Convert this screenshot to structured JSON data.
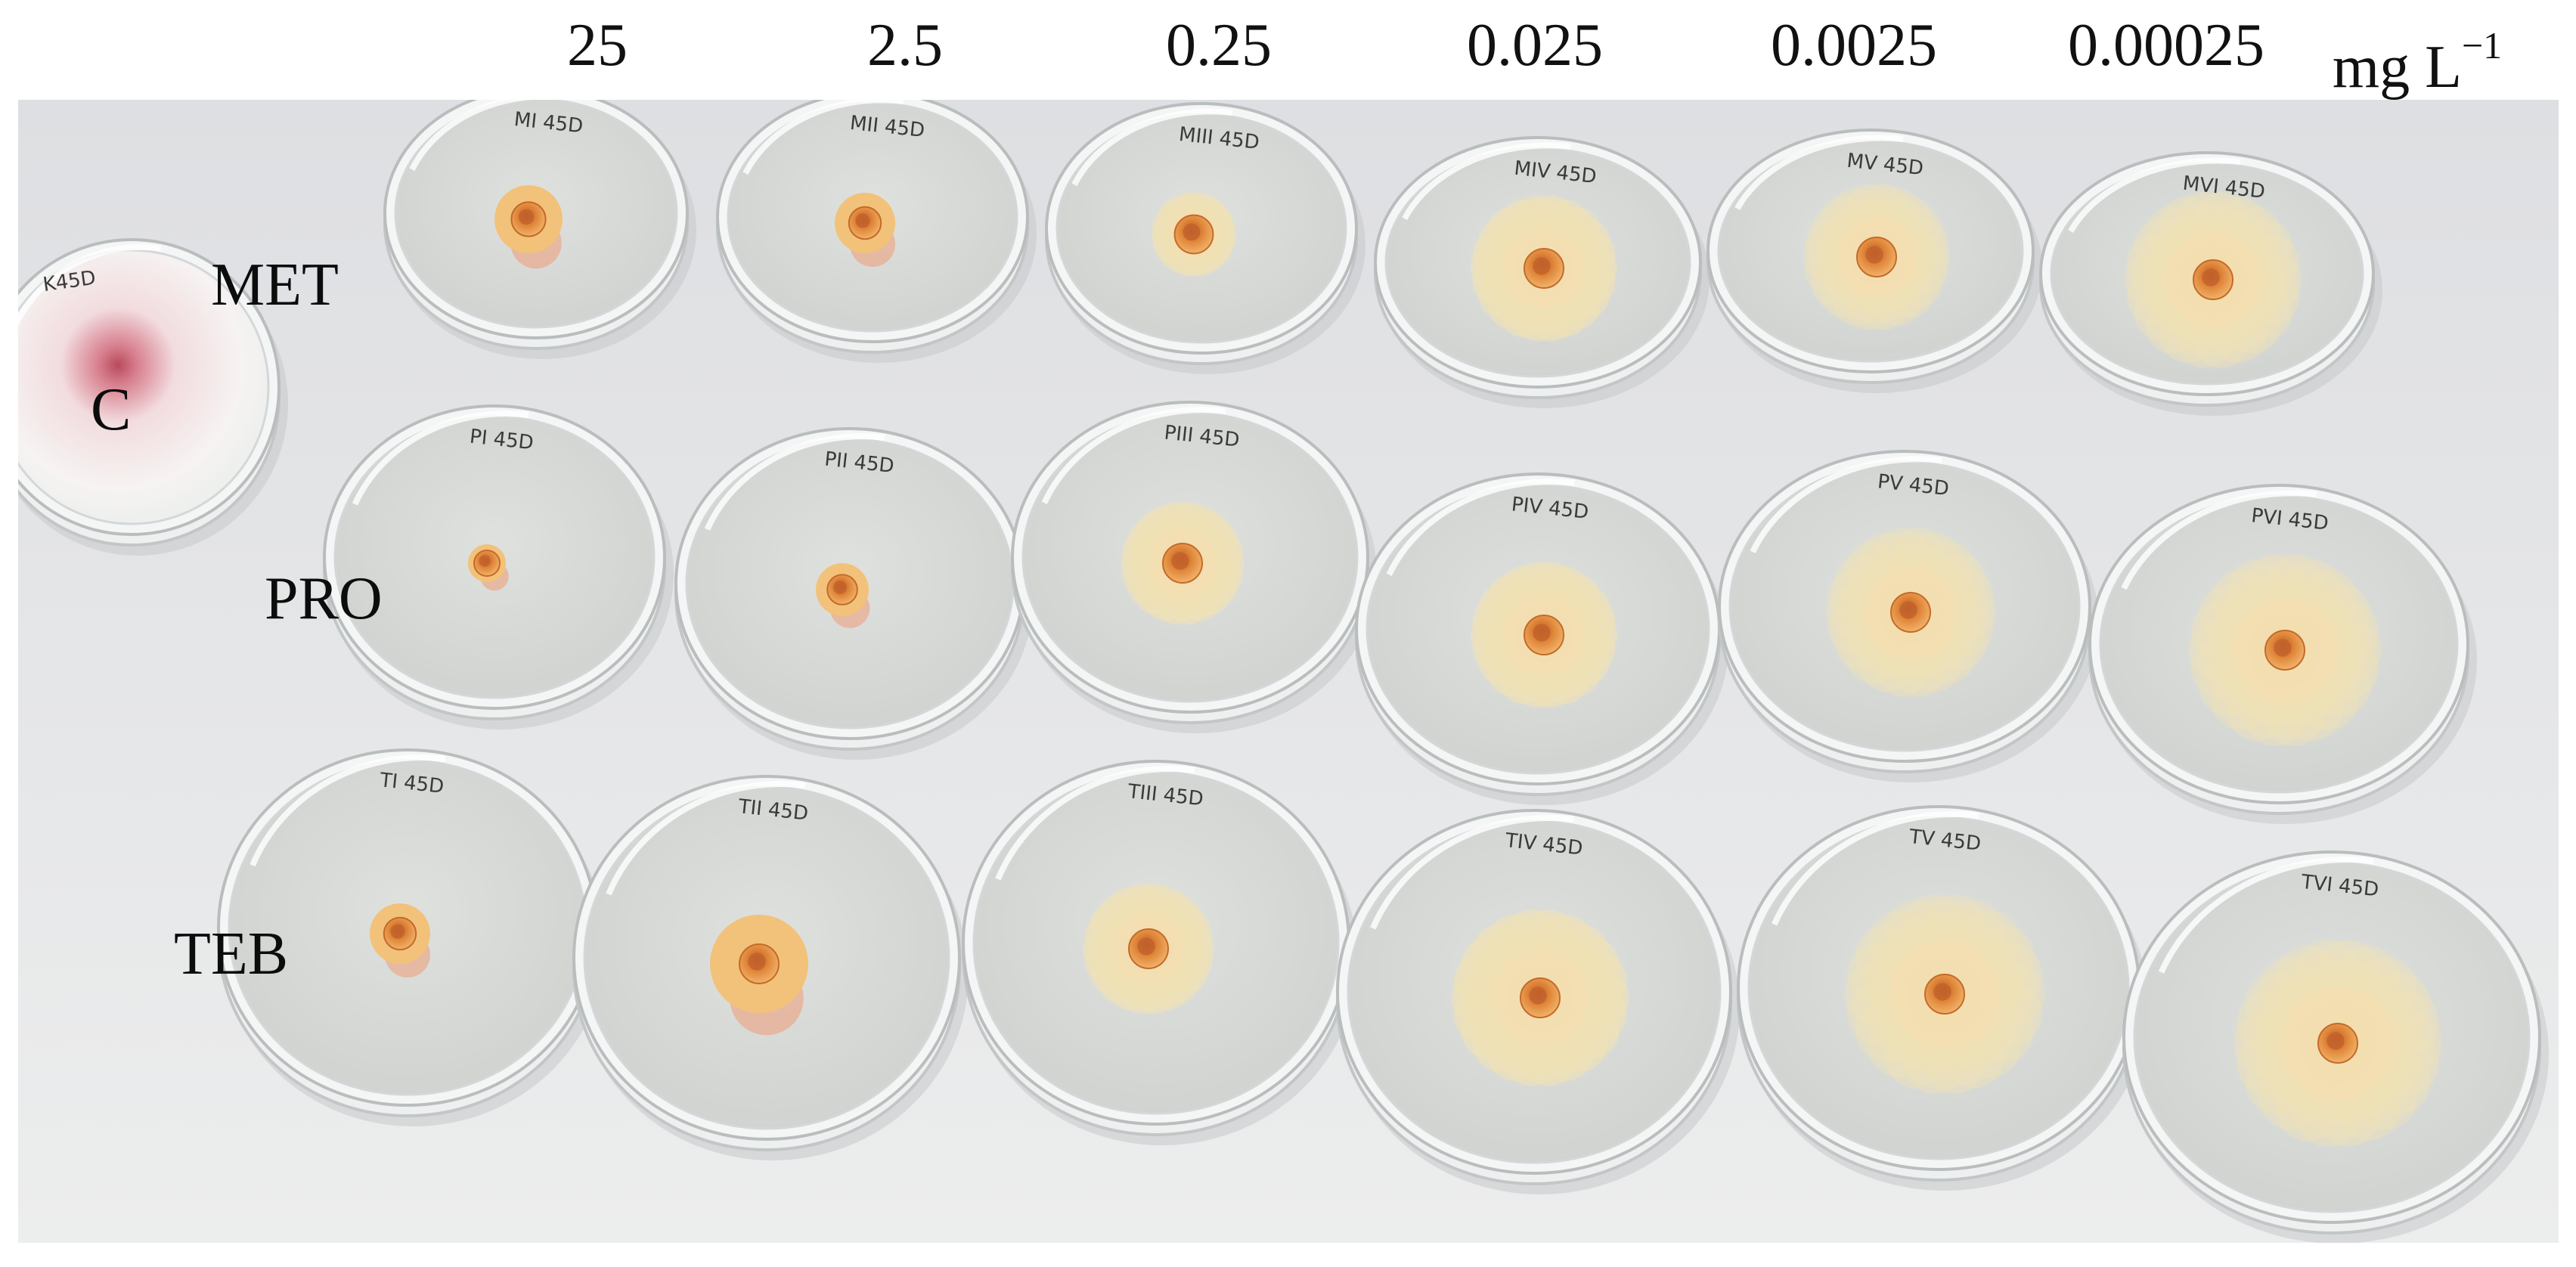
{
  "concentrations": {
    "values": [
      "25",
      "2.5",
      "0.25",
      "0.025",
      "0.0025",
      "0.00025"
    ],
    "unit": "mg L",
    "unit_exponent": "−1"
  },
  "row_labels": {
    "control": "C",
    "met": "MET",
    "pro": "PRO",
    "teb": "TEB"
  },
  "plate_markings": {
    "control": "K45D",
    "met": [
      "MI 45D",
      "MII 45D",
      "MIII 45D",
      "MIV 45D",
      "MV 45D",
      "MVI 45D"
    ],
    "pro": [
      "PI 45D",
      "PII 45D",
      "PIII 45D",
      "PIV 45D",
      "PV 45D",
      "PVI 45D"
    ],
    "teb": [
      "TI 45D",
      "TII 45D",
      "TIII 45D",
      "TIV 45D",
      "TV 45D",
      "TVI 45D"
    ]
  },
  "colors": {
    "background": "#e6e6e8",
    "agar": "#d7d9d6",
    "colony_yellow": "#efd9a0",
    "colony_center": "#d9782e",
    "control_mycelium": "#f4efee",
    "control_pink": "#cf5c72"
  }
}
